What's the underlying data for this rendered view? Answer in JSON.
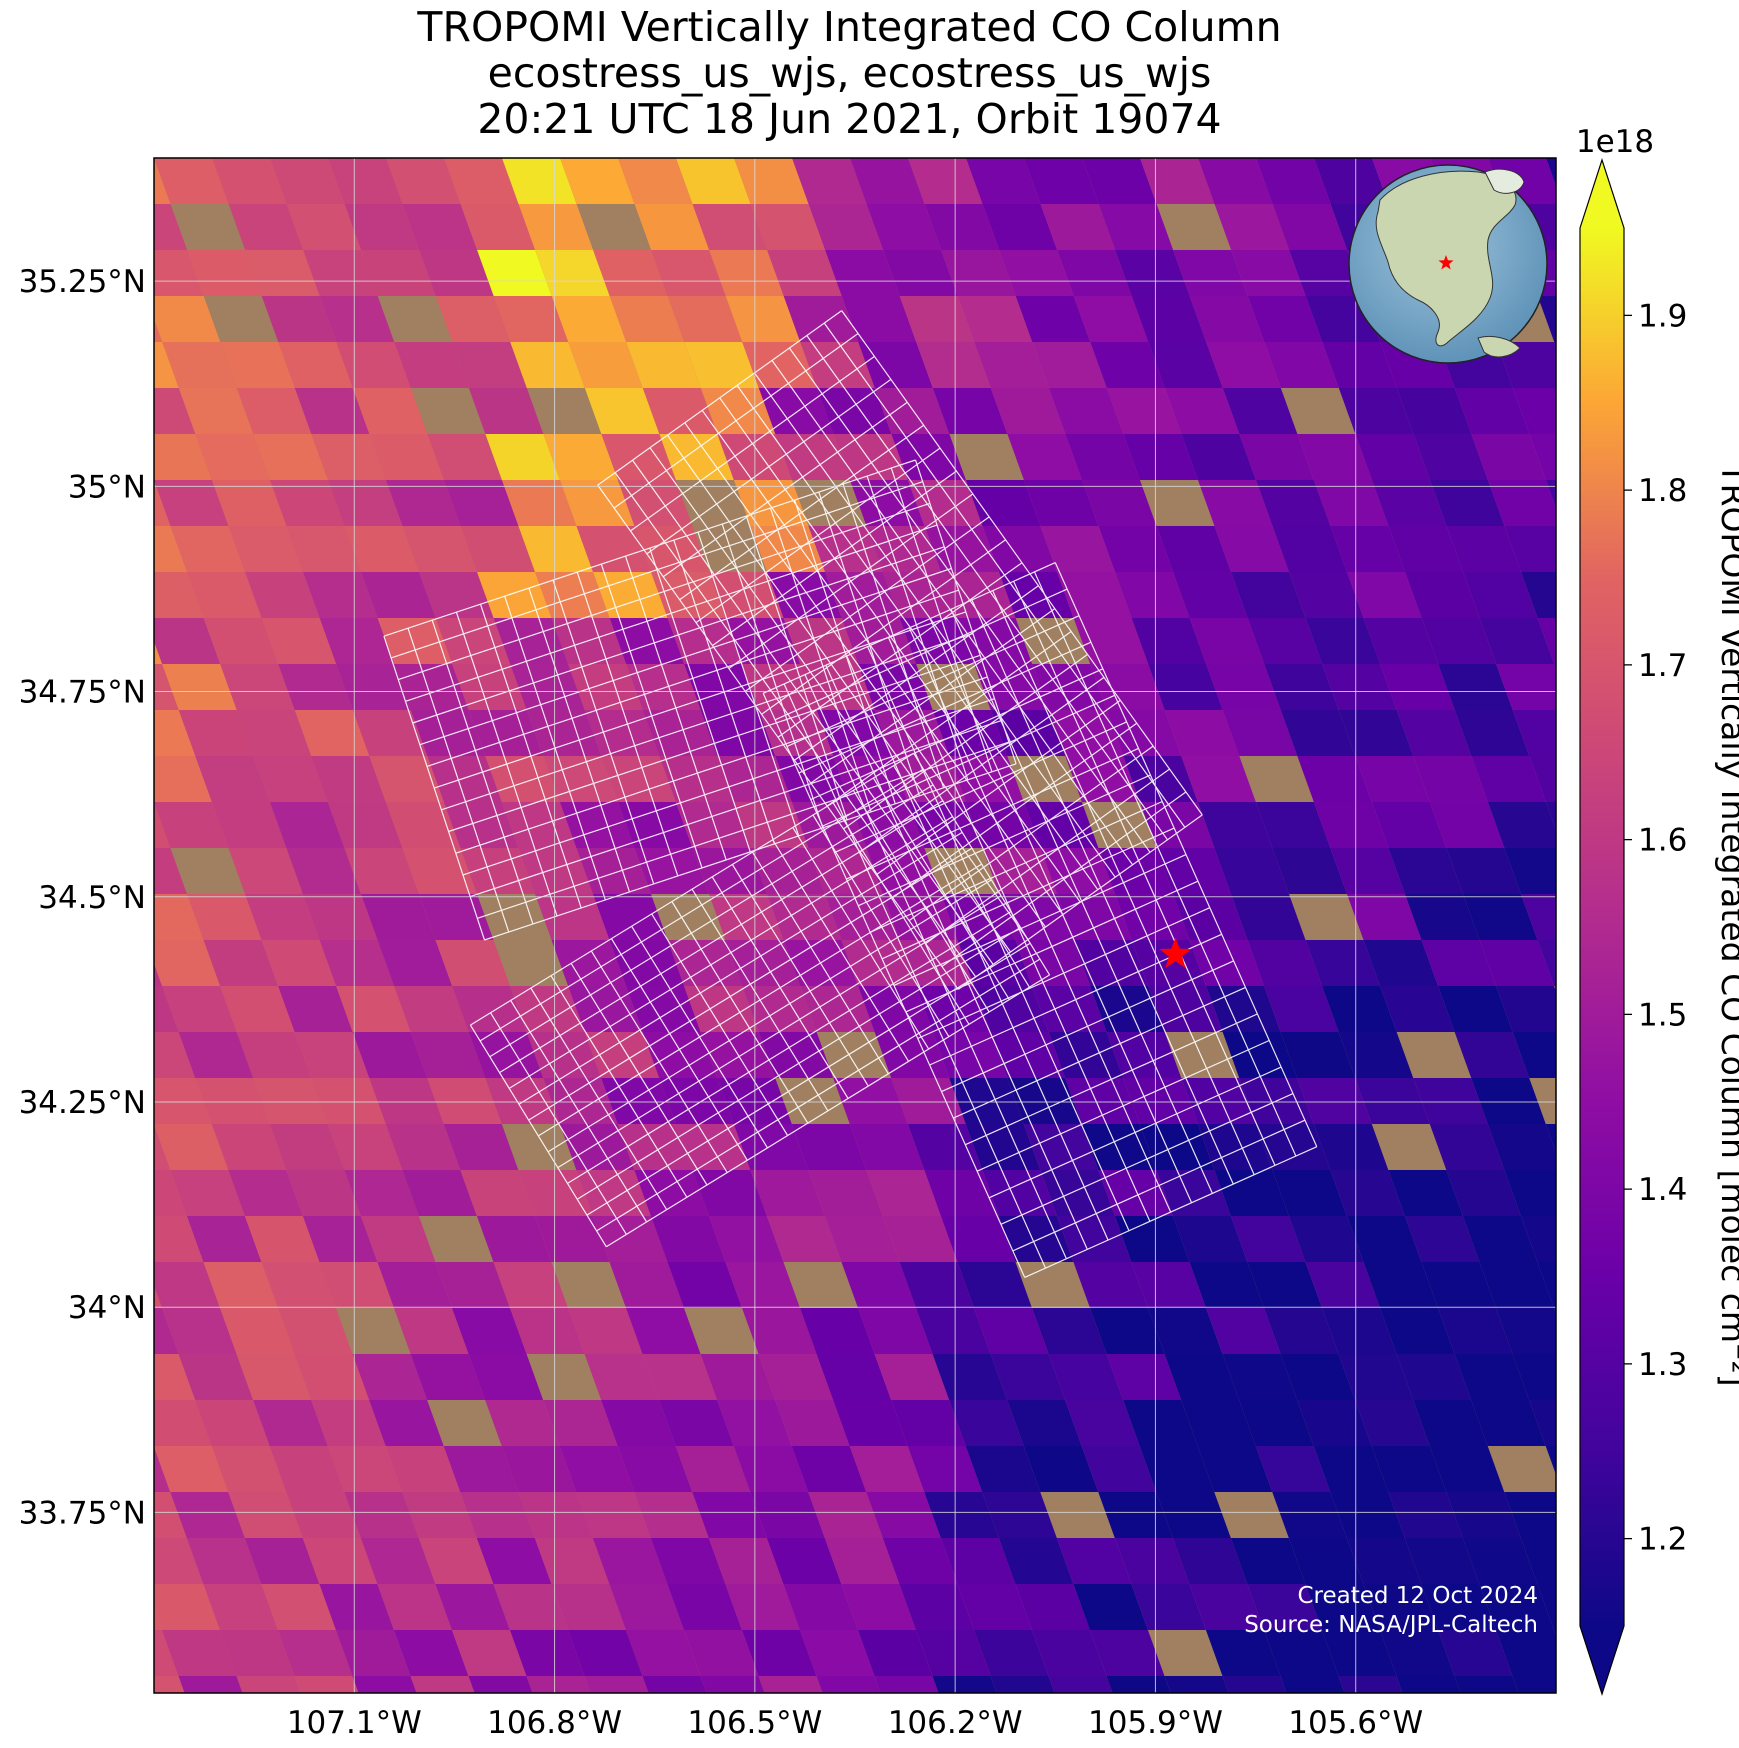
{
  "title": {
    "line1": "TROPOMI Vertically Integrated CO Column",
    "line2": "ecostress_us_wjs, ecostress_us_wjs",
    "line3": "20:21 UTC 18 Jun 2021, Orbit 19074"
  },
  "map": {
    "extent_lon": [
      -107.4,
      -105.3
    ],
    "extent_lat": [
      33.53,
      35.4
    ],
    "lat_ticks": [
      {
        "value": 35.25,
        "label": "35.25°N"
      },
      {
        "value": 35.0,
        "label": "35°N"
      },
      {
        "value": 34.75,
        "label": "34.75°N"
      },
      {
        "value": 34.5,
        "label": "34.5°N"
      },
      {
        "value": 34.25,
        "label": "34.25°N"
      },
      {
        "value": 34.0,
        "label": "34°N"
      },
      {
        "value": 33.75,
        "label": "33.75°N"
      }
    ],
    "lon_ticks": [
      {
        "value": -107.1,
        "label": "107.1°W"
      },
      {
        "value": -106.8,
        "label": "106.8°W"
      },
      {
        "value": -106.5,
        "label": "106.5°W"
      },
      {
        "value": -106.2,
        "label": "106.2°W"
      },
      {
        "value": -105.9,
        "label": "105.9°W"
      },
      {
        "value": -105.6,
        "label": "105.6°W"
      }
    ],
    "grid": true,
    "site_marker": {
      "lon": -105.87,
      "lat": 34.43,
      "symbol": "star",
      "color": "#ff0000"
    },
    "background": "satellite imagery (desert)",
    "overlay": "ECOSTRESS footprint grid (white outlines)",
    "inset_globe": {
      "content": "North America globe",
      "marker": "star",
      "marker_color": "#ff0000"
    },
    "credits": {
      "line1": "Created 12 Oct 2024",
      "line2": "Source: NASA/JPL-Caltech"
    }
  },
  "colorbar": {
    "label": "TROPOMI Vertically Integrated CO Column [molec cm⁻²]",
    "multiplier": "1e18",
    "colormap": "plasma",
    "range": [
      1.15,
      1.95
    ],
    "extend": "both",
    "ticks": [
      {
        "value": 1.2,
        "label": "1.2"
      },
      {
        "value": 1.3,
        "label": "1.3"
      },
      {
        "value": 1.4,
        "label": "1.4"
      },
      {
        "value": 1.5,
        "label": "1.5"
      },
      {
        "value": 1.6,
        "label": "1.6"
      },
      {
        "value": 1.7,
        "label": "1.7"
      },
      {
        "value": 1.8,
        "label": "1.8"
      },
      {
        "value": 1.9,
        "label": "1.9"
      }
    ]
  }
}
